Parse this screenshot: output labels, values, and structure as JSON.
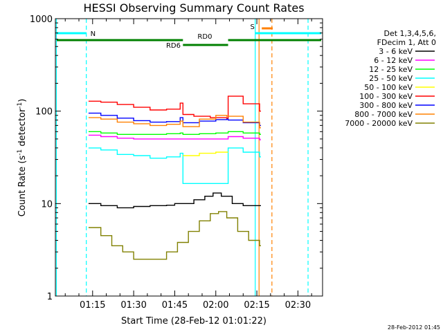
{
  "chart_data": {
    "type": "line",
    "title": "HESSI Observing Summary Count Rates",
    "xlabel": "Start Time (28-Feb-12 01:01:22)",
    "ylabel_main": "Count Rate (s",
    "ylabel_sup1": "-1",
    "ylabel_mid": " detector",
    "ylabel_sup2": "-1",
    "ylabel_end": ")",
    "y_scale": "log",
    "ylim": [
      1,
      1000
    ],
    "xlim_minutes": [
      61.4,
      159.0
    ],
    "x_ticks": [
      {
        "m": 75,
        "label": "01:15"
      },
      {
        "m": 90,
        "label": "01:30"
      },
      {
        "m": 105,
        "label": "01:45"
      },
      {
        "m": 120,
        "label": "02:00"
      },
      {
        "m": 135,
        "label": "02:15"
      },
      {
        "m": 150,
        "label": "02:30"
      }
    ],
    "y_ticks": [
      {
        "v": 1,
        "label": "1"
      },
      {
        "v": 10,
        "label": "10"
      },
      {
        "v": 100,
        "label": "100"
      },
      {
        "v": 1000,
        "label": "1000"
      }
    ],
    "legend_header": [
      "Det 1,3,4,5,6,",
      "FDecim 1, Att 0"
    ],
    "legend_position": "right",
    "series": [
      {
        "name": "3 - 6 keV",
        "color": "#000000",
        "values": [
          [
            73.5,
            10
          ],
          [
            78,
            9.5
          ],
          [
            84,
            9
          ],
          [
            90,
            9.3
          ],
          [
            96,
            9.5
          ],
          [
            102,
            9.6
          ],
          [
            105,
            10
          ],
          [
            108,
            10
          ],
          [
            112,
            11
          ],
          [
            116,
            12
          ],
          [
            119,
            13
          ],
          [
            122,
            12
          ],
          [
            126,
            10
          ],
          [
            130,
            9.5
          ],
          [
            136,
            9.5
          ]
        ]
      },
      {
        "name": "6 - 12 keV",
        "color": "#ff00ff",
        "values": [
          [
            73.5,
            55
          ],
          [
            78,
            53
          ],
          [
            84,
            51
          ],
          [
            90,
            50
          ],
          [
            96,
            50
          ],
          [
            102,
            50
          ],
          [
            108,
            50
          ],
          [
            112,
            50
          ],
          [
            118,
            50
          ],
          [
            124,
            50
          ],
          [
            124.5,
            53
          ],
          [
            130,
            51
          ],
          [
            136,
            49
          ]
        ]
      },
      {
        "name": "12 - 25 keV",
        "color": "#00ff00",
        "values": [
          [
            73.5,
            60
          ],
          [
            78,
            58
          ],
          [
            84,
            56
          ],
          [
            90,
            56
          ],
          [
            96,
            56
          ],
          [
            102,
            57
          ],
          [
            107,
            58
          ],
          [
            108,
            56
          ],
          [
            114,
            57
          ],
          [
            120,
            58
          ],
          [
            124,
            58
          ],
          [
            124.5,
            60
          ],
          [
            130,
            58
          ],
          [
            136,
            56
          ]
        ]
      },
      {
        "name": "25 - 50 keV",
        "color": "#00ffff",
        "values": [
          [
            73.5,
            40
          ],
          [
            78,
            38
          ],
          [
            84,
            34
          ],
          [
            90,
            33
          ],
          [
            96,
            31
          ],
          [
            102,
            32
          ],
          [
            107,
            35
          ],
          [
            108,
            16.5
          ],
          [
            114,
            16.5
          ],
          [
            120,
            16.5
          ],
          [
            124,
            16.5
          ],
          [
            124.5,
            40
          ],
          [
            130,
            36
          ],
          [
            136,
            32
          ]
        ]
      },
      {
        "name": "50 - 100 keV",
        "color": "#ffff00",
        "values": [
          [
            108,
            33
          ],
          [
            114,
            35
          ],
          [
            120,
            36
          ],
          [
            124,
            36
          ]
        ]
      },
      {
        "name": "100 - 300 keV",
        "color": "#ff0000",
        "values": [
          [
            73.5,
            128
          ],
          [
            78,
            125
          ],
          [
            84,
            118
          ],
          [
            90,
            110
          ],
          [
            96,
            103
          ],
          [
            102,
            105
          ],
          [
            107,
            122
          ],
          [
            108,
            92
          ],
          [
            112,
            88
          ],
          [
            118,
            85
          ],
          [
            124,
            84
          ],
          [
            124.5,
            145
          ],
          [
            130,
            120
          ],
          [
            136,
            100
          ]
        ]
      },
      {
        "name": "300 - 800 keV",
        "color": "#0000ff",
        "values": [
          [
            73.5,
            95
          ],
          [
            78,
            90
          ],
          [
            84,
            84
          ],
          [
            90,
            79
          ],
          [
            96,
            76
          ],
          [
            102,
            77
          ],
          [
            107,
            85
          ],
          [
            108,
            75
          ],
          [
            114,
            78
          ],
          [
            120,
            81
          ],
          [
            124,
            82
          ],
          [
            124.5,
            80
          ],
          [
            130,
            75
          ],
          [
            136,
            70
          ]
        ]
      },
      {
        "name": "800 - 7000 keV",
        "color": "#ff8000",
        "values": [
          [
            73.5,
            85
          ],
          [
            78,
            82
          ],
          [
            84,
            76
          ],
          [
            90,
            73
          ],
          [
            96,
            70
          ],
          [
            102,
            72
          ],
          [
            107,
            78
          ],
          [
            108,
            68
          ],
          [
            114,
            82
          ],
          [
            120,
            90
          ],
          [
            124,
            88
          ],
          [
            130,
            76
          ],
          [
            136,
            66
          ]
        ]
      },
      {
        "name": "7000 - 20000 keV",
        "color": "#808000",
        "values": [
          [
            73.5,
            5.5
          ],
          [
            78,
            4.5
          ],
          [
            82,
            3.5
          ],
          [
            86,
            3
          ],
          [
            90,
            2.5
          ],
          [
            96,
            2.5
          ],
          [
            102,
            3
          ],
          [
            106,
            3.8
          ],
          [
            110,
            5
          ],
          [
            114,
            6.5
          ],
          [
            118,
            7.8
          ],
          [
            121,
            8.2
          ],
          [
            124,
            7
          ],
          [
            128,
            5
          ],
          [
            132,
            4
          ],
          [
            136,
            3.5
          ]
        ]
      }
    ],
    "annotations": {
      "bar_n_label": "N",
      "bar_s_label": "S",
      "bar_rd0_label": "RD0",
      "bar_rd6_label": "RD6",
      "color_cyan": "#00ffff",
      "color_green": "#008000",
      "color_orange": "#ff8000"
    },
    "timestamp": "28-Feb-2012 01:45"
  }
}
